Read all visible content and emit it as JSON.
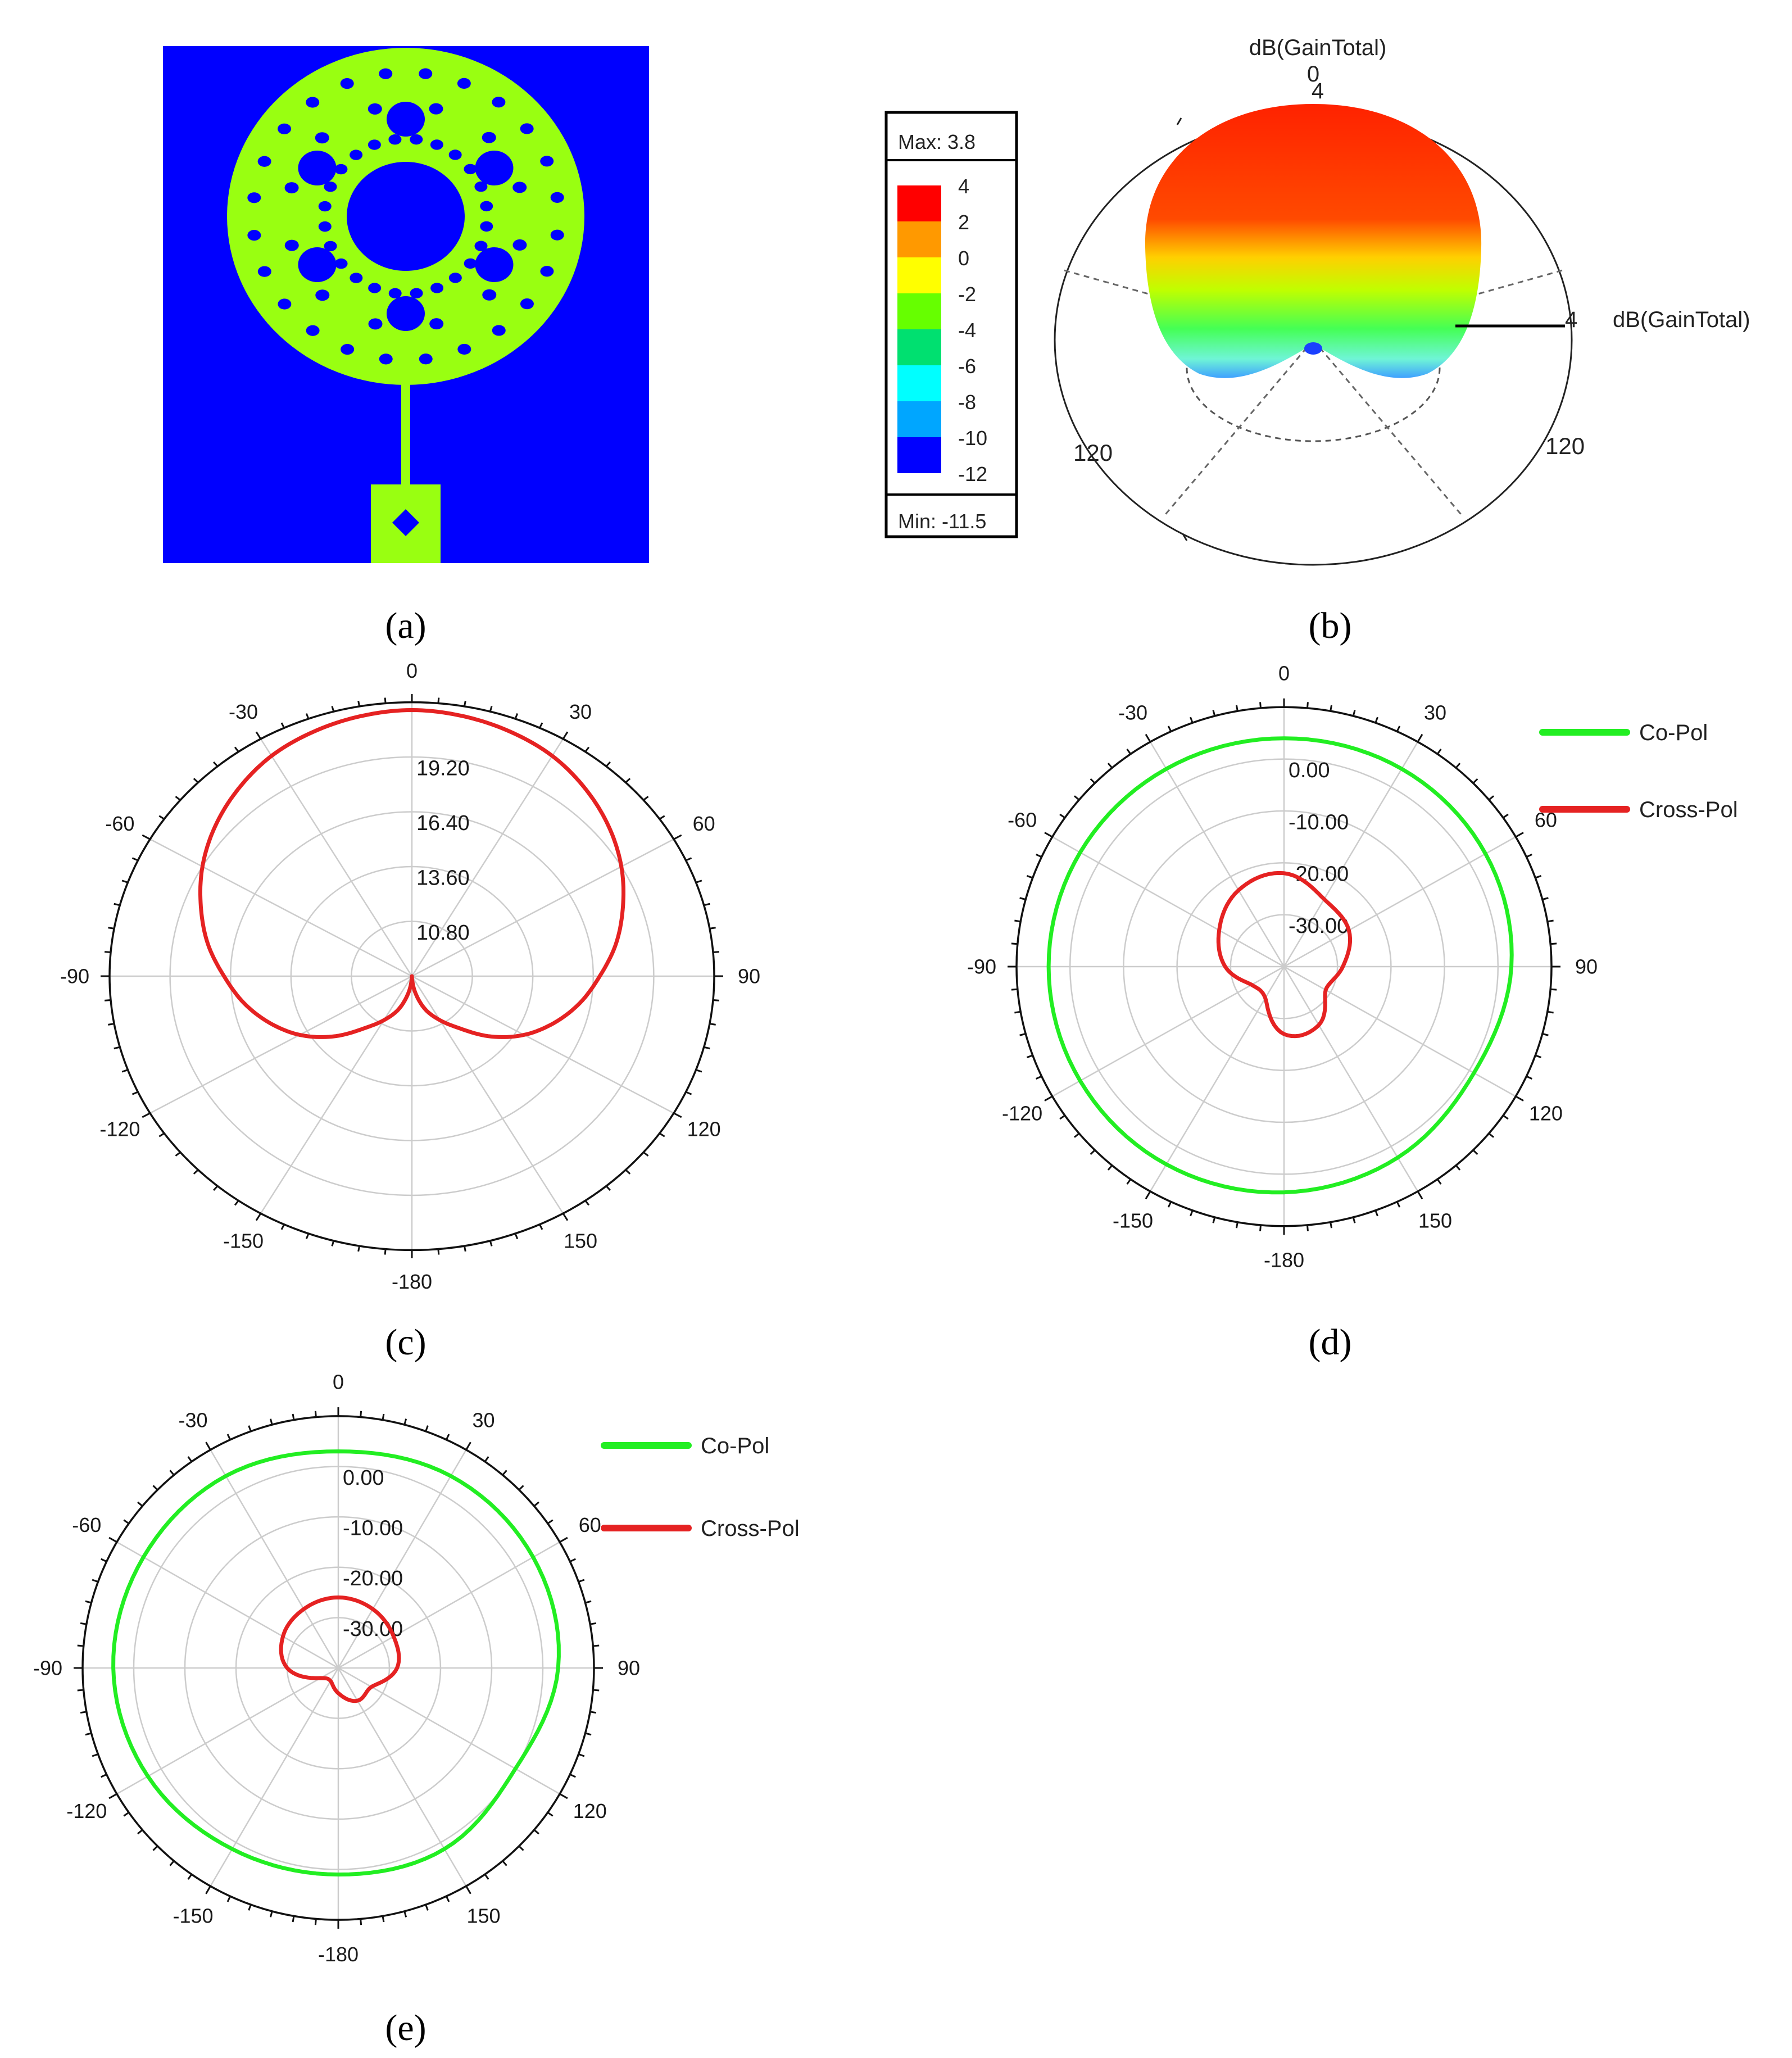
{
  "panels": {
    "a": {
      "label": "(a)"
    },
    "b": {
      "label": "(b)",
      "quantity": "dB(GainTotal)",
      "scale_max_text": "Max: 3.8",
      "scale_min_text": "Min: -11.5",
      "scale_ticks": [
        "4",
        "2",
        "0",
        "-2",
        "-4",
        "-6",
        "-8",
        "-10",
        "-12"
      ],
      "scale_colors": [
        "#ff0000",
        "#ff9900",
        "#ffff00",
        "#66ff00",
        "#00e070",
        "#00ffff",
        "#00a6ff",
        "#0000ff"
      ],
      "axis_top_zero": "0",
      "axis_top_value": "4",
      "axis_right_value": "4",
      "angle_left": "120",
      "angle_right": "120"
    },
    "c": {
      "label": "(c)"
    },
    "d": {
      "label": "(d)"
    },
    "e": {
      "label": "(e)"
    }
  },
  "chart_data": [
    {
      "id": "c",
      "type": "line",
      "coordinate_system": "polar",
      "angle_tick_labels": [
        "0",
        "30",
        "60",
        "90",
        "120",
        "150",
        "-180",
        "-150",
        "-120",
        "-90",
        "-60",
        "-30"
      ],
      "radial_tick_labels": [
        "19.20",
        "16.40",
        "13.60",
        "10.80"
      ],
      "rlim": [
        8,
        22
      ],
      "grid": true,
      "series": [
        {
          "color": "#e52222",
          "theta": [
            0,
            10,
            20,
            30,
            40,
            50,
            60,
            70,
            80,
            90,
            100,
            110,
            120,
            130,
            140,
            150,
            160,
            170,
            180
          ],
          "r": [
            21.6,
            21.5,
            21.3,
            21.0,
            20.5,
            19.9,
            19.2,
            18.4,
            17.6,
            16.7,
            15.9,
            15.0,
            14.0,
            12.8,
            11.5,
            10.6,
            9.8,
            8.8,
            8.0
          ]
        }
      ]
    },
    {
      "id": "d",
      "type": "line",
      "coordinate_system": "polar",
      "angle_tick_labels": [
        "0",
        "30",
        "60",
        "90",
        "120",
        "150",
        "-180",
        "-150",
        "-120",
        "-90",
        "-60",
        "-30"
      ],
      "radial_tick_labels": [
        "0.00",
        "-10.00",
        "-20.00",
        "-30.00"
      ],
      "rlim": [
        -40,
        10
      ],
      "grid": true,
      "legend_position": "top-right",
      "series": [
        {
          "name": "Co-Pol",
          "color": "#22ee22",
          "theta": [
            0,
            30,
            60,
            90,
            120,
            150,
            180,
            210,
            240,
            270,
            300,
            330
          ],
          "r": [
            4.0,
            4.0,
            3.5,
            2.5,
            1.0,
            2.5,
            3.5,
            4.0,
            4.0,
            4.0,
            4.0,
            4.0
          ]
        },
        {
          "name": "Cross-Pol",
          "color": "#e52222",
          "theta": [
            0,
            30,
            60,
            90,
            120,
            150,
            180,
            210,
            240,
            270,
            300,
            330
          ],
          "r": [
            -22.0,
            -25.0,
            -26.0,
            -29.0,
            -31.0,
            -27.0,
            -27.0,
            -33.0,
            -33.0,
            -29.0,
            -26.0,
            -23.0
          ]
        }
      ]
    },
    {
      "id": "e",
      "type": "line",
      "coordinate_system": "polar",
      "angle_tick_labels": [
        "0",
        "30",
        "60",
        "90",
        "120",
        "150",
        "-180",
        "-150",
        "-120",
        "-90",
        "-60",
        "-30"
      ],
      "radial_tick_labels": [
        "0.00",
        "-10.00",
        "-20.00",
        "-30.00"
      ],
      "rlim": [
        -40,
        10
      ],
      "grid": true,
      "legend_position": "top-right",
      "series": [
        {
          "name": "Co-Pol",
          "color": "#22ee22",
          "theta": [
            0,
            30,
            60,
            90,
            120,
            150,
            180,
            210,
            240,
            270,
            300,
            330
          ],
          "r": [
            3.0,
            4.0,
            4.0,
            3.0,
            0.0,
            1.5,
            1.0,
            1.5,
            3.0,
            4.0,
            4.0,
            4.0
          ]
        },
        {
          "name": "Cross-Pol",
          "color": "#e52222",
          "theta": [
            0,
            30,
            60,
            90,
            120,
            150,
            180,
            210,
            240,
            270,
            300,
            330
          ],
          "r": [
            -26.0,
            -26.5,
            -27.5,
            -28.5,
            -32.5,
            -32.5,
            -35.0,
            -37.0,
            -36.0,
            -30.0,
            -27.5,
            -26.5
          ]
        }
      ]
    }
  ]
}
